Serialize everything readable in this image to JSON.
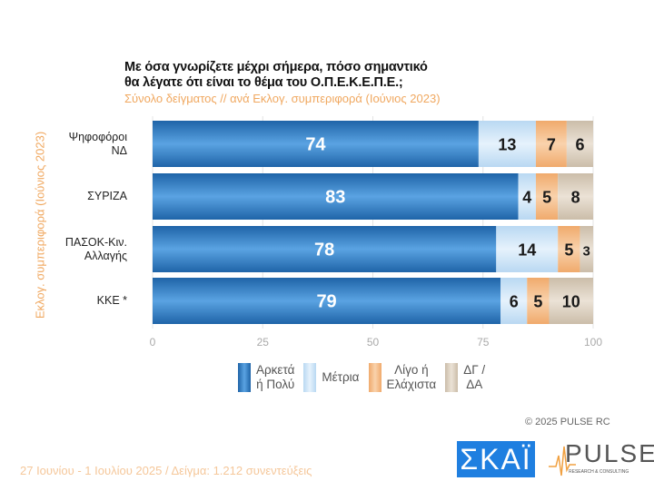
{
  "chart_data": {
    "type": "bar",
    "orientation": "horizontal",
    "stacked": true,
    "title": "Με όσα γνωρίζετε μέχρι σήμερα, πόσο σημαντικό θα λέγατε ότι είναι το θέμα του  Ο.Π.Ε.Κ.Ε.Π.Ε.;",
    "title_lines": [
      "Με όσα γνωρίζετε μέχρι σήμερα, πόσο σημαντικό",
      "θα λέγατε ότι είναι το θέμα του  Ο.Π.Ε.Κ.Ε.Π.Ε.;"
    ],
    "subtitle": "Σύνολο δείγματος // ανά Εκλογ. συμπεριφορά (Ιούνιος 2023)",
    "ylabel": "Εκλογ. συμπεριφορά (Ιούνιος 2023)",
    "xlabel": "",
    "xlim": [
      0,
      100
    ],
    "xticks": [
      "0",
      "25",
      "50",
      "75",
      "100"
    ],
    "grid": true,
    "legend_position": "bottom",
    "categories": [
      {
        "lines": [
          "Ψηφοφόροι",
          "ΝΔ"
        ]
      },
      {
        "lines": [
          "ΣΥΡΙΖΑ"
        ]
      },
      {
        "lines": [
          "ΠΑΣΟΚ-Κιν.",
          "Αλλαγής"
        ]
      },
      {
        "lines": [
          "ΚΚΕ *"
        ]
      }
    ],
    "series": [
      {
        "name": "Αρκετά ή Πολύ",
        "name_lines": [
          "Αρκετά",
          "ή Πολύ"
        ],
        "color": "#2f7fc8",
        "values": [
          74,
          83,
          78,
          79
        ]
      },
      {
        "name": "Μέτρια",
        "name_lines": [
          "Μέτρια"
        ],
        "color": "#cfe5f8",
        "values": [
          13,
          4,
          14,
          6
        ]
      },
      {
        "name": "Λίγο ή Ελάχιστα",
        "name_lines": [
          "Λίγο ή",
          "Ελάχιστα"
        ],
        "color": "#f5c08c",
        "values": [
          7,
          5,
          5,
          5
        ]
      },
      {
        "name": "ΔΓ / ΔΑ",
        "name_lines": [
          "ΔΓ /",
          "ΔΑ"
        ],
        "color": "#dcd0c0",
        "values": [
          6,
          8,
          3,
          10
        ]
      }
    ]
  },
  "copyright": "© 2025  PULSE RC",
  "footer": "27 Ιουνίου - 1 Ιουλίου 2025  /  Δείγμα:  1.212 συνεντεύξεις",
  "logos": {
    "skai": "ΣΚΑΪ",
    "pulse": "PULSE",
    "pulse_sub": "RESEARCH & CONSULTING"
  }
}
